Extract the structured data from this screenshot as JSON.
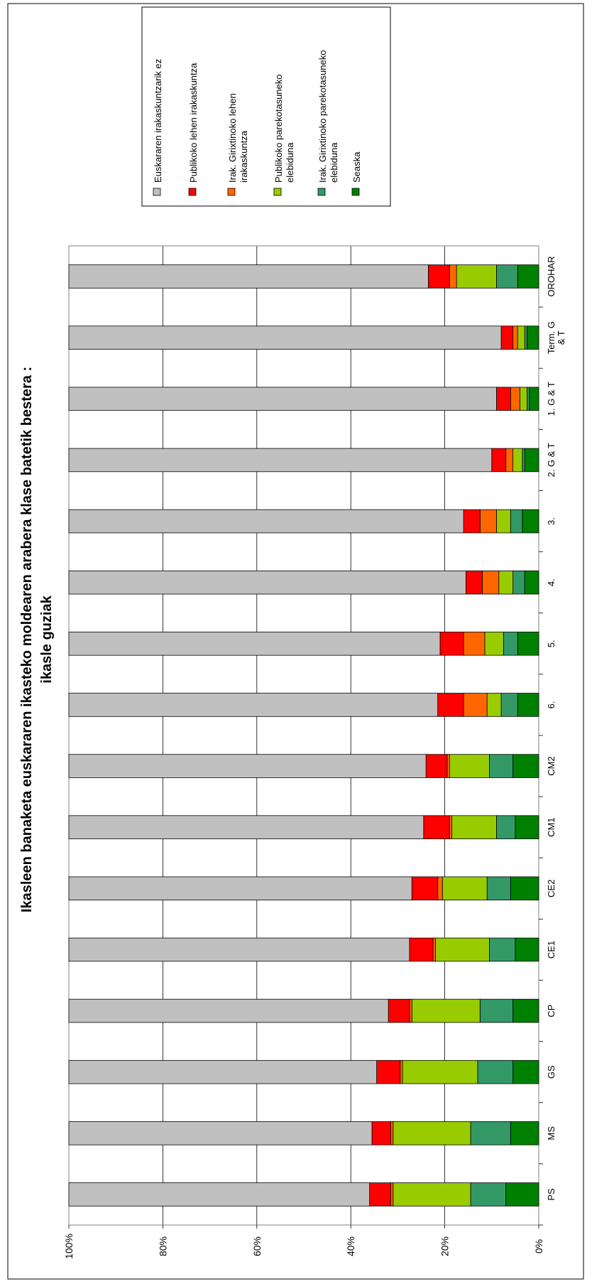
{
  "chart_data": {
    "type": "bar",
    "stacked": true,
    "percent": true,
    "title": "Ikasleen banaketa euskararen ikasteko moldearen arabera klase batetik bestera :",
    "subtitle": "ikasle guziak",
    "xlabel": "",
    "ylabel": "",
    "ylim": [
      0,
      100
    ],
    "y_ticks": [
      "0%",
      "20%",
      "40%",
      "60%",
      "80%",
      "100%"
    ],
    "y_tick_values": [
      0,
      20,
      40,
      60,
      80,
      100
    ],
    "grid": true,
    "legend_position": "top-right",
    "categories": [
      "PS",
      "MS",
      "GS",
      "CP",
      "CE1",
      "CE2",
      "CM1",
      "CM2",
      "6.",
      "5.",
      "4.",
      "3.",
      "2. G & T",
      "1. G & T",
      "Term. G & T",
      "OROHAR"
    ],
    "series": [
      {
        "name": "Seaska",
        "color": "#008000",
        "values": [
          7,
          6,
          5.5,
          5.5,
          5,
          6,
          5,
          5.5,
          4.5,
          4.5,
          3,
          3.5,
          3,
          2,
          2.5,
          4.5
        ]
      },
      {
        "name": "Irak. Girixtinoko parekotasuneko elebiduna",
        "color": "#339966",
        "values": [
          7.5,
          8.5,
          7.5,
          7,
          5.5,
          5,
          4,
          5,
          3.5,
          3,
          2.5,
          2.5,
          0.5,
          0.5,
          0.5,
          4.5
        ]
      },
      {
        "name": "Publikoko parekotasuneko elebiduna",
        "color": "#99cc00",
        "values": [
          16.5,
          16.5,
          16,
          14.5,
          11.5,
          9.5,
          9.5,
          8.5,
          3,
          4,
          3,
          3,
          2,
          1.5,
          1.5,
          8.5
        ]
      },
      {
        "name": "Irak. Girixtinoko lehen irakaskuntza",
        "color": "#ff6600",
        "values": [
          0.5,
          0.5,
          0.5,
          0.5,
          0.5,
          1,
          0.5,
          0.5,
          5,
          4.5,
          3.5,
          3.5,
          1.5,
          2,
          1,
          1.5
        ]
      },
      {
        "name": "Publikoko lehen irakaskuntza",
        "color": "#ff0000",
        "values": [
          4.5,
          4,
          5,
          4.5,
          5,
          5.5,
          5.5,
          4.5,
          5.5,
          5,
          3.5,
          3.5,
          3,
          3,
          2.5,
          4.5
        ]
      },
      {
        "name": "Euskararen irakaskuntzarik ez",
        "color": "#c0c0c0",
        "values": [
          64,
          64.5,
          65.5,
          68,
          72.5,
          73,
          75.5,
          76,
          78.5,
          79,
          84.5,
          84,
          90,
          91,
          92,
          76.5
        ]
      }
    ],
    "legend_order": [
      5,
      4,
      3,
      2,
      1,
      0
    ],
    "legend_lines": [
      [
        "Euskararen irakaskuntzarik ez"
      ],
      [
        "Publikoko lehen irakaskuntza"
      ],
      [
        "Irak. Girixtinoko lehen",
        "irakaskuntza"
      ],
      [
        "Publikoko parekotasuneko",
        "elebiduna"
      ],
      [
        "Irak. Girixtinoko parekotasuneko",
        "elebiduna"
      ],
      [
        "Seaska"
      ]
    ]
  }
}
